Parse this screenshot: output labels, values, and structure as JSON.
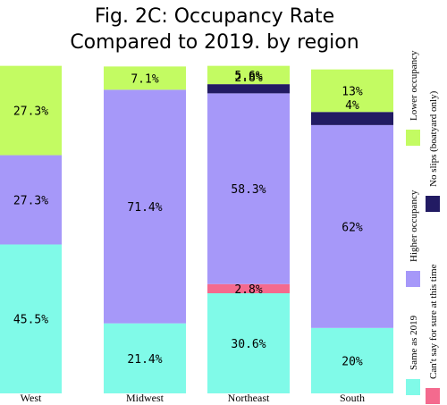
{
  "chart_data": {
    "type": "bar",
    "stacked": true,
    "title": [
      "Fig. 2C: Occupancy Rate",
      "Compared to 2019. by region"
    ],
    "categories": [
      "West",
      "Midwest",
      "Northeast",
      "South"
    ],
    "series": [
      {
        "name": "Same as 2019",
        "color": "#80fae8",
        "values": [
          45.5,
          21.4,
          30.6,
          20
        ]
      },
      {
        "name": "Can't say for sure at this time",
        "color": "#f46a8e",
        "values": [
          0,
          0,
          2.8,
          0
        ]
      },
      {
        "name": "Higher occupancy",
        "color": "#a698f9",
        "values": [
          27.3,
          71.4,
          58.3,
          62
        ]
      },
      {
        "name": "No slips (boatyard only)",
        "color": "#221b63",
        "values": [
          0,
          0,
          2.8,
          4
        ]
      },
      {
        "name": "Lower occupancy",
        "color": "#c3fb62",
        "values": [
          27.3,
          7.1,
          5.6,
          13
        ]
      }
    ],
    "segment_labels": [
      [
        "45.5%",
        "",
        "27.3%",
        "",
        "27.3%"
      ],
      [
        "21.4%",
        "",
        "71.4%",
        "",
        "7.1%"
      ],
      [
        "30.6%",
        "2.8%",
        "58.3%",
        "2.8%",
        "5.6%"
      ],
      [
        "20%",
        "",
        "62%",
        "4%",
        "13%"
      ]
    ],
    "ylim": [
      0,
      100
    ],
    "legend_position": "right"
  }
}
